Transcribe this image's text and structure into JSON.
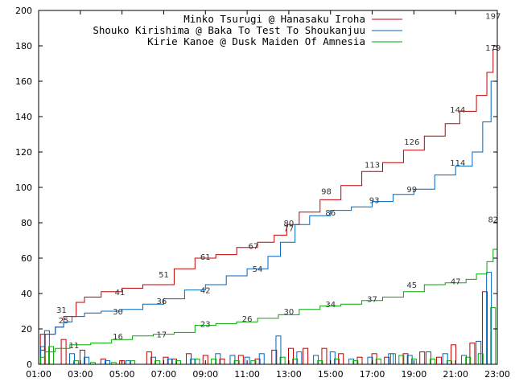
{
  "chart_data": {
    "type": "line",
    "title": "",
    "xlabel": "",
    "ylabel": "",
    "xlim": [
      1,
      23
    ],
    "ylim": [
      0,
      200
    ],
    "x_ticks": [
      "01:00",
      "03:00",
      "05:00",
      "07:00",
      "09:00",
      "11:00",
      "13:00",
      "15:00",
      "17:00",
      "19:00",
      "21:00",
      "23:00"
    ],
    "y_ticks": [
      0,
      20,
      40,
      60,
      80,
      100,
      120,
      140,
      160,
      180,
      200
    ],
    "grid": false,
    "legend": "top-right",
    "series": [
      {
        "name": "Minko Tsurugi @ Hanasaku Iroha",
        "color": "#c00000",
        "cumulative": [
          [
            1,
            0
          ],
          [
            1.1,
            8
          ],
          [
            1.3,
            17
          ],
          [
            1.8,
            21
          ],
          [
            2.2,
            27
          ],
          [
            2.8,
            35
          ],
          [
            3.2,
            38
          ],
          [
            4,
            41
          ],
          [
            5,
            43
          ],
          [
            6,
            45
          ],
          [
            7.5,
            54
          ],
          [
            8.5,
            60
          ],
          [
            9.5,
            62
          ],
          [
            10.5,
            66
          ],
          [
            11.5,
            69
          ],
          [
            12.3,
            73
          ],
          [
            12.9,
            79
          ],
          [
            13.5,
            86
          ],
          [
            14.5,
            93
          ],
          [
            15.5,
            101
          ],
          [
            16.5,
            109
          ],
          [
            17.5,
            114
          ],
          [
            18.5,
            121
          ],
          [
            19.5,
            129
          ],
          [
            20.5,
            136
          ],
          [
            21.2,
            143
          ],
          [
            22,
            152
          ],
          [
            22.5,
            165
          ],
          [
            22.8,
            178
          ],
          [
            23,
            197
          ]
        ],
        "labels": [
          {
            "x": 2.1,
            "y": 31,
            "t": "31"
          },
          {
            "x": 4.9,
            "y": 41,
            "t": "41"
          },
          {
            "x": 7.0,
            "y": 51,
            "t": "51"
          },
          {
            "x": 9.0,
            "y": 61,
            "t": "61"
          },
          {
            "x": 11.3,
            "y": 67,
            "t": "67"
          },
          {
            "x": 13.0,
            "y": 80,
            "t": "80"
          },
          {
            "x": 14.8,
            "y": 98,
            "t": "98"
          },
          {
            "x": 17.0,
            "y": 113,
            "t": "113"
          },
          {
            "x": 18.9,
            "y": 126,
            "t": "126"
          },
          {
            "x": 21.1,
            "y": 144,
            "t": "144"
          },
          {
            "x": 22.8,
            "y": 197,
            "t": "197"
          }
        ],
        "bars": [
          [
            1.2,
            17
          ],
          [
            2.2,
            14
          ],
          [
            3.1,
            8
          ],
          [
            4.1,
            3
          ],
          [
            5.0,
            2
          ],
          [
            6.3,
            7
          ],
          [
            7.1,
            4
          ],
          [
            7.5,
            3
          ],
          [
            8.2,
            6
          ],
          [
            9.0,
            5
          ],
          [
            9.8,
            3
          ],
          [
            10.7,
            5
          ],
          [
            11.5,
            3
          ],
          [
            12.3,
            8
          ],
          [
            13.1,
            9
          ],
          [
            13.8,
            9
          ],
          [
            14.7,
            9
          ],
          [
            15.5,
            6
          ],
          [
            16.4,
            4
          ],
          [
            17.1,
            6
          ],
          [
            17.7,
            4
          ],
          [
            18.6,
            6
          ],
          [
            19.4,
            7
          ],
          [
            20.2,
            4
          ],
          [
            20.9,
            11
          ],
          [
            21.8,
            12
          ],
          [
            22.4,
            41
          ]
        ]
      },
      {
        "name": "Shouko Kirishima @ Baka To Test To Shoukanjuu",
        "color": "#0066bb",
        "cumulative": [
          [
            1,
            0
          ],
          [
            1.1,
            10
          ],
          [
            1.3,
            17
          ],
          [
            1.8,
            21
          ],
          [
            2.2,
            24
          ],
          [
            2.6,
            27
          ],
          [
            3.2,
            29
          ],
          [
            4,
            30
          ],
          [
            5,
            31
          ],
          [
            6,
            34
          ],
          [
            7,
            37
          ],
          [
            8,
            42
          ],
          [
            9,
            45
          ],
          [
            10,
            50
          ],
          [
            11,
            54
          ],
          [
            12,
            61
          ],
          [
            12.6,
            69
          ],
          [
            13.3,
            79
          ],
          [
            14,
            84
          ],
          [
            15,
            87
          ],
          [
            16,
            89
          ],
          [
            17,
            92
          ],
          [
            18,
            96
          ],
          [
            19,
            99
          ],
          [
            20,
            107
          ],
          [
            21,
            112
          ],
          [
            21.8,
            120
          ],
          [
            22.3,
            137
          ],
          [
            22.7,
            160
          ],
          [
            23,
            180
          ]
        ],
        "labels": [
          {
            "x": 2.2,
            "y": 25,
            "t": "25"
          },
          {
            "x": 4.8,
            "y": 30,
            "t": "30"
          },
          {
            "x": 6.9,
            "y": 36,
            "t": "36"
          },
          {
            "x": 9.0,
            "y": 42,
            "t": "42"
          },
          {
            "x": 11.5,
            "y": 54,
            "t": "54"
          },
          {
            "x": 13.0,
            "y": 77,
            "t": "77"
          },
          {
            "x": 15.0,
            "y": 86,
            "t": "86"
          },
          {
            "x": 17.1,
            "y": 93,
            "t": "93"
          },
          {
            "x": 18.9,
            "y": 99,
            "t": "99"
          },
          {
            "x": 21.1,
            "y": 114,
            "t": "114"
          },
          {
            "x": 22.8,
            "y": 179,
            "t": "179"
          }
        ],
        "bars": [
          [
            1.4,
            19
          ],
          [
            2.6,
            6
          ],
          [
            3.3,
            4
          ],
          [
            4.3,
            2
          ],
          [
            5.3,
            2
          ],
          [
            6.5,
            4
          ],
          [
            7.3,
            3
          ],
          [
            8.4,
            3
          ],
          [
            9.6,
            6
          ],
          [
            10.3,
            5
          ],
          [
            11.0,
            4
          ],
          [
            11.7,
            6
          ],
          [
            12.5,
            16
          ],
          [
            13.5,
            7
          ],
          [
            14.3,
            5
          ],
          [
            15.1,
            7
          ],
          [
            16.0,
            3
          ],
          [
            16.9,
            4
          ],
          [
            17.9,
            6
          ],
          [
            18.8,
            5
          ],
          [
            19.7,
            7
          ],
          [
            20.5,
            6
          ],
          [
            21.4,
            5
          ],
          [
            22.1,
            13
          ],
          [
            22.6,
            52
          ]
        ]
      },
      {
        "name": "Kirie Kanoe @ Dusk Maiden Of Amnesia",
        "color": "#00aa00",
        "cumulative": [
          [
            1,
            0
          ],
          [
            1.1,
            4
          ],
          [
            1.3,
            7
          ],
          [
            1.8,
            9
          ],
          [
            2.5,
            11
          ],
          [
            3.5,
            12
          ],
          [
            4.5,
            14
          ],
          [
            5.5,
            16
          ],
          [
            6.5,
            17
          ],
          [
            7.5,
            18
          ],
          [
            8.5,
            22
          ],
          [
            9.5,
            23
          ],
          [
            10.5,
            24
          ],
          [
            11.5,
            26
          ],
          [
            12.5,
            28
          ],
          [
            13.5,
            31
          ],
          [
            14.5,
            33
          ],
          [
            15.5,
            34
          ],
          [
            16.5,
            36
          ],
          [
            17.5,
            38
          ],
          [
            18.5,
            41
          ],
          [
            19.5,
            45
          ],
          [
            20.5,
            46
          ],
          [
            21.5,
            48
          ],
          [
            22,
            51
          ],
          [
            22.5,
            58
          ],
          [
            22.8,
            65
          ],
          [
            23,
            82
          ]
        ],
        "labels": [
          {
            "x": 2.7,
            "y": 11,
            "t": "11"
          },
          {
            "x": 4.8,
            "y": 16,
            "t": "16"
          },
          {
            "x": 6.9,
            "y": 17,
            "t": "17"
          },
          {
            "x": 9.0,
            "y": 23,
            "t": "23"
          },
          {
            "x": 11.0,
            "y": 26,
            "t": "26"
          },
          {
            "x": 13.0,
            "y": 30,
            "t": "30"
          },
          {
            "x": 15.0,
            "y": 34,
            "t": "34"
          },
          {
            "x": 17.0,
            "y": 37,
            "t": "37"
          },
          {
            "x": 18.9,
            "y": 45,
            "t": "45"
          },
          {
            "x": 21.0,
            "y": 47,
            "t": "47"
          },
          {
            "x": 22.8,
            "y": 82,
            "t": "82"
          }
        ],
        "bars": [
          [
            1.6,
            10
          ],
          [
            2.8,
            2
          ],
          [
            3.6,
            1
          ],
          [
            4.6,
            1
          ],
          [
            5.5,
            2
          ],
          [
            6.7,
            2
          ],
          [
            7.7,
            2
          ],
          [
            8.6,
            3
          ],
          [
            9.4,
            3
          ],
          [
            10.5,
            2
          ],
          [
            11.3,
            2
          ],
          [
            12.7,
            4
          ],
          [
            13.3,
            3
          ],
          [
            14.5,
            2
          ],
          [
            15.3,
            3
          ],
          [
            16.2,
            2
          ],
          [
            17.3,
            3
          ],
          [
            18.0,
            6
          ],
          [
            18.4,
            5
          ],
          [
            19.0,
            3
          ],
          [
            19.9,
            3
          ],
          [
            20.7,
            2
          ],
          [
            21.6,
            4
          ],
          [
            22.2,
            6
          ],
          [
            22.8,
            32
          ]
        ]
      }
    ]
  }
}
